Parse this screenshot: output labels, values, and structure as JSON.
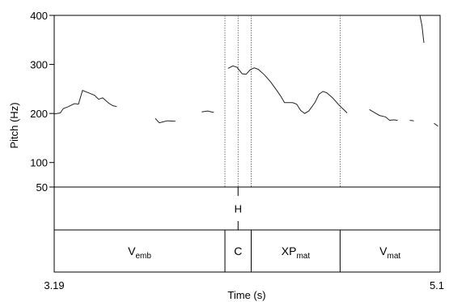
{
  "chart_data": {
    "type": "line",
    "ylabel": "Pitch (Hz)",
    "xlabel": "Time (s)",
    "xlim": [
      3.19,
      5.1
    ],
    "ylim": [
      50,
      400
    ],
    "x_tick_labels": [
      "3.19",
      "5.1"
    ],
    "y_ticks": [
      {
        "value": 400,
        "label": "400"
      },
      {
        "value": 300,
        "label": "300"
      },
      {
        "value": 200,
        "label": "200"
      },
      {
        "value": 100,
        "label": "100"
      },
      {
        "value": 50,
        "label": "50"
      }
    ],
    "pitch_segments": [
      [
        [
          3.19,
          199
        ],
        [
          3.22,
          201
        ],
        [
          3.235,
          210
        ],
        [
          3.26,
          214
        ],
        [
          3.29,
          220
        ],
        [
          3.31,
          219
        ],
        [
          3.33,
          247
        ],
        [
          3.36,
          242
        ],
        [
          3.39,
          237
        ],
        [
          3.41,
          229
        ],
        [
          3.43,
          232
        ],
        [
          3.46,
          221
        ],
        [
          3.48,
          216
        ],
        [
          3.5,
          214
        ]
      ],
      [
        [
          3.69,
          190
        ],
        [
          3.71,
          181
        ],
        [
          3.73,
          183
        ],
        [
          3.75,
          185
        ],
        [
          3.79,
          184
        ]
      ],
      [
        [
          3.92,
          203
        ],
        [
          3.95,
          205
        ],
        [
          3.98,
          202
        ]
      ],
      [
        [
          4.05,
          292
        ],
        [
          4.075,
          297
        ],
        [
          4.095,
          294
        ],
        [
          4.12,
          281
        ],
        [
          4.14,
          280
        ],
        [
          4.16,
          289
        ],
        [
          4.18,
          293
        ],
        [
          4.2,
          290
        ],
        [
          4.23,
          279
        ],
        [
          4.26,
          265
        ],
        [
          4.29,
          248
        ],
        [
          4.31,
          236
        ],
        [
          4.33,
          222
        ],
        [
          4.355,
          222
        ],
        [
          4.37,
          222
        ],
        [
          4.39,
          219
        ],
        [
          4.41,
          206
        ],
        [
          4.43,
          200
        ],
        [
          4.45,
          205
        ],
        [
          4.48,
          222
        ],
        [
          4.5,
          239
        ],
        [
          4.52,
          245
        ],
        [
          4.54,
          242
        ],
        [
          4.57,
          231
        ],
        [
          4.6,
          217
        ],
        [
          4.625,
          207
        ],
        [
          4.64,
          201
        ]
      ],
      [
        [
          4.75,
          208
        ],
        [
          4.77,
          203
        ],
        [
          4.8,
          196
        ],
        [
          4.83,
          193
        ],
        [
          4.85,
          186
        ],
        [
          4.87,
          187
        ],
        [
          4.89,
          186
        ]
      ],
      [
        [
          4.95,
          186
        ],
        [
          4.97,
          185
        ]
      ],
      [
        [
          5.07,
          180
        ],
        [
          5.09,
          174
        ]
      ],
      [
        [
          5.0,
          400
        ],
        [
          5.01,
          380
        ],
        [
          5.02,
          344
        ]
      ]
    ],
    "boundaries": [
      4.035,
      4.1,
      4.165,
      4.605
    ],
    "tone_tier": [
      {
        "time": 4.1,
        "label": "H"
      }
    ],
    "word_tier": [
      {
        "label": "V",
        "sub": "emb",
        "start": 3.19,
        "end": 4.035
      },
      {
        "label": "C",
        "sub": "",
        "start": 4.035,
        "end": 4.165
      },
      {
        "label": "XP",
        "sub": "mat",
        "start": 4.165,
        "end": 4.605
      },
      {
        "label": "V",
        "sub": "mat",
        "start": 4.605,
        "end": 5.1
      }
    ]
  }
}
